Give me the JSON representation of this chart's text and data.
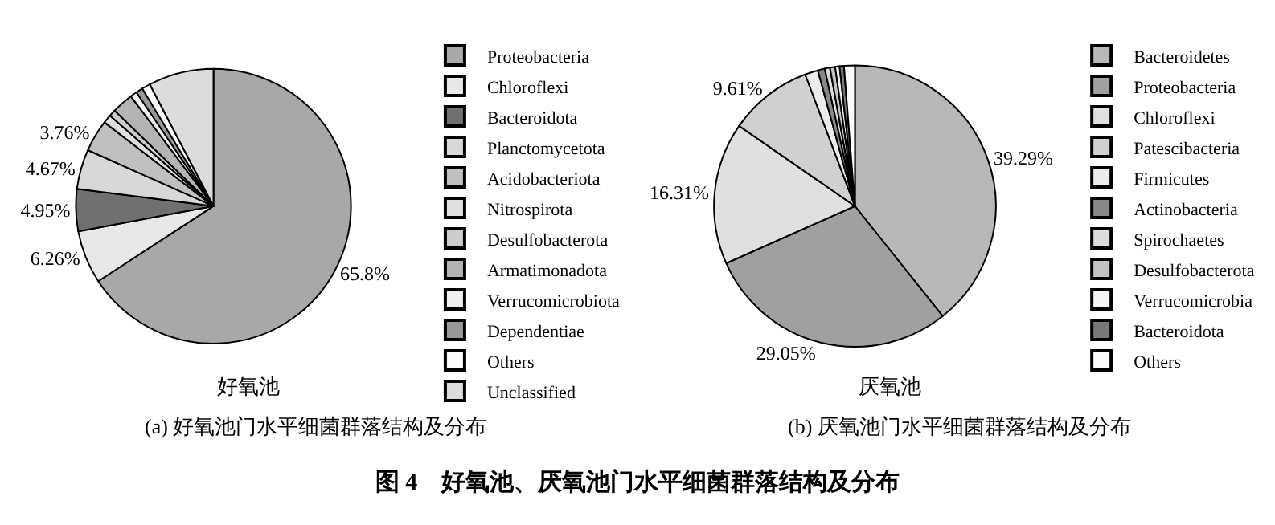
{
  "chart_data": [
    {
      "type": "pie",
      "xlabel": "好氧池",
      "annotations": [
        "(a) 好氧池门水平细菌群落结构及分布"
      ],
      "legend": "right",
      "categories": [
        "Proteobacteria",
        "Chloroflexi",
        "Bacteroidota",
        "Planctomycetota",
        "Acidobacteriota",
        "Nitrospirota",
        "Desulfobacterota",
        "Armatimonadota",
        "Verrucomicrobiota",
        "Dependentiae",
        "Others",
        "Unclassified"
      ],
      "values": [
        65.8,
        6.26,
        4.95,
        4.67,
        3.76,
        1.0,
        0.8,
        2.5,
        0.8,
        0.8,
        1.0,
        7.66
      ],
      "value_labels": [
        "65.8%",
        "6.26%",
        "4.95%",
        "4.67%",
        "3.76%",
        null,
        null,
        null,
        null,
        null,
        null,
        null
      ],
      "colors": [
        "#a8a8a8",
        "#e8e8e8",
        "#707070",
        "#d8d8d8",
        "#c0c0c0",
        "#e0e0e0",
        "#cccccc",
        "#b4b4b4",
        "#f0f0f0",
        "#989898",
        "#fcfcfc",
        "#dcdcdc"
      ]
    },
    {
      "type": "pie",
      "xlabel": "厌氧池",
      "annotations": [
        "(b) 厌氧池门水平细菌群落结构及分布",
        "图 4　好氧池、厌氧池门水平细菌群落结构及分布"
      ],
      "legend": "right",
      "categories": [
        "Bacteroidetes",
        "Proteobacteria",
        "Chloroflexi",
        "Patescibacteria",
        "Firmicutes",
        "Actinobacteria",
        "Spirochaetes",
        "Desulfobacterota",
        "Verrucomicrobia",
        "Bacteroidota",
        "Others"
      ],
      "values": [
        39.29,
        29.05,
        16.31,
        9.61,
        1.5,
        0.8,
        0.6,
        0.6,
        0.5,
        0.5,
        1.24
      ],
      "value_labels": [
        "39.29%",
        "29.05%",
        "16.31%",
        "9.61%",
        null,
        null,
        null,
        null,
        null,
        null,
        null
      ],
      "colors": [
        "#b8b8b8",
        "#a0a0a0",
        "#e0e0e0",
        "#d0d0d0",
        "#ececec",
        "#888888",
        "#dcdcdc",
        "#c4c4c4",
        "#f4f4f4",
        "#787878",
        "#fcfcfc"
      ]
    }
  ]
}
